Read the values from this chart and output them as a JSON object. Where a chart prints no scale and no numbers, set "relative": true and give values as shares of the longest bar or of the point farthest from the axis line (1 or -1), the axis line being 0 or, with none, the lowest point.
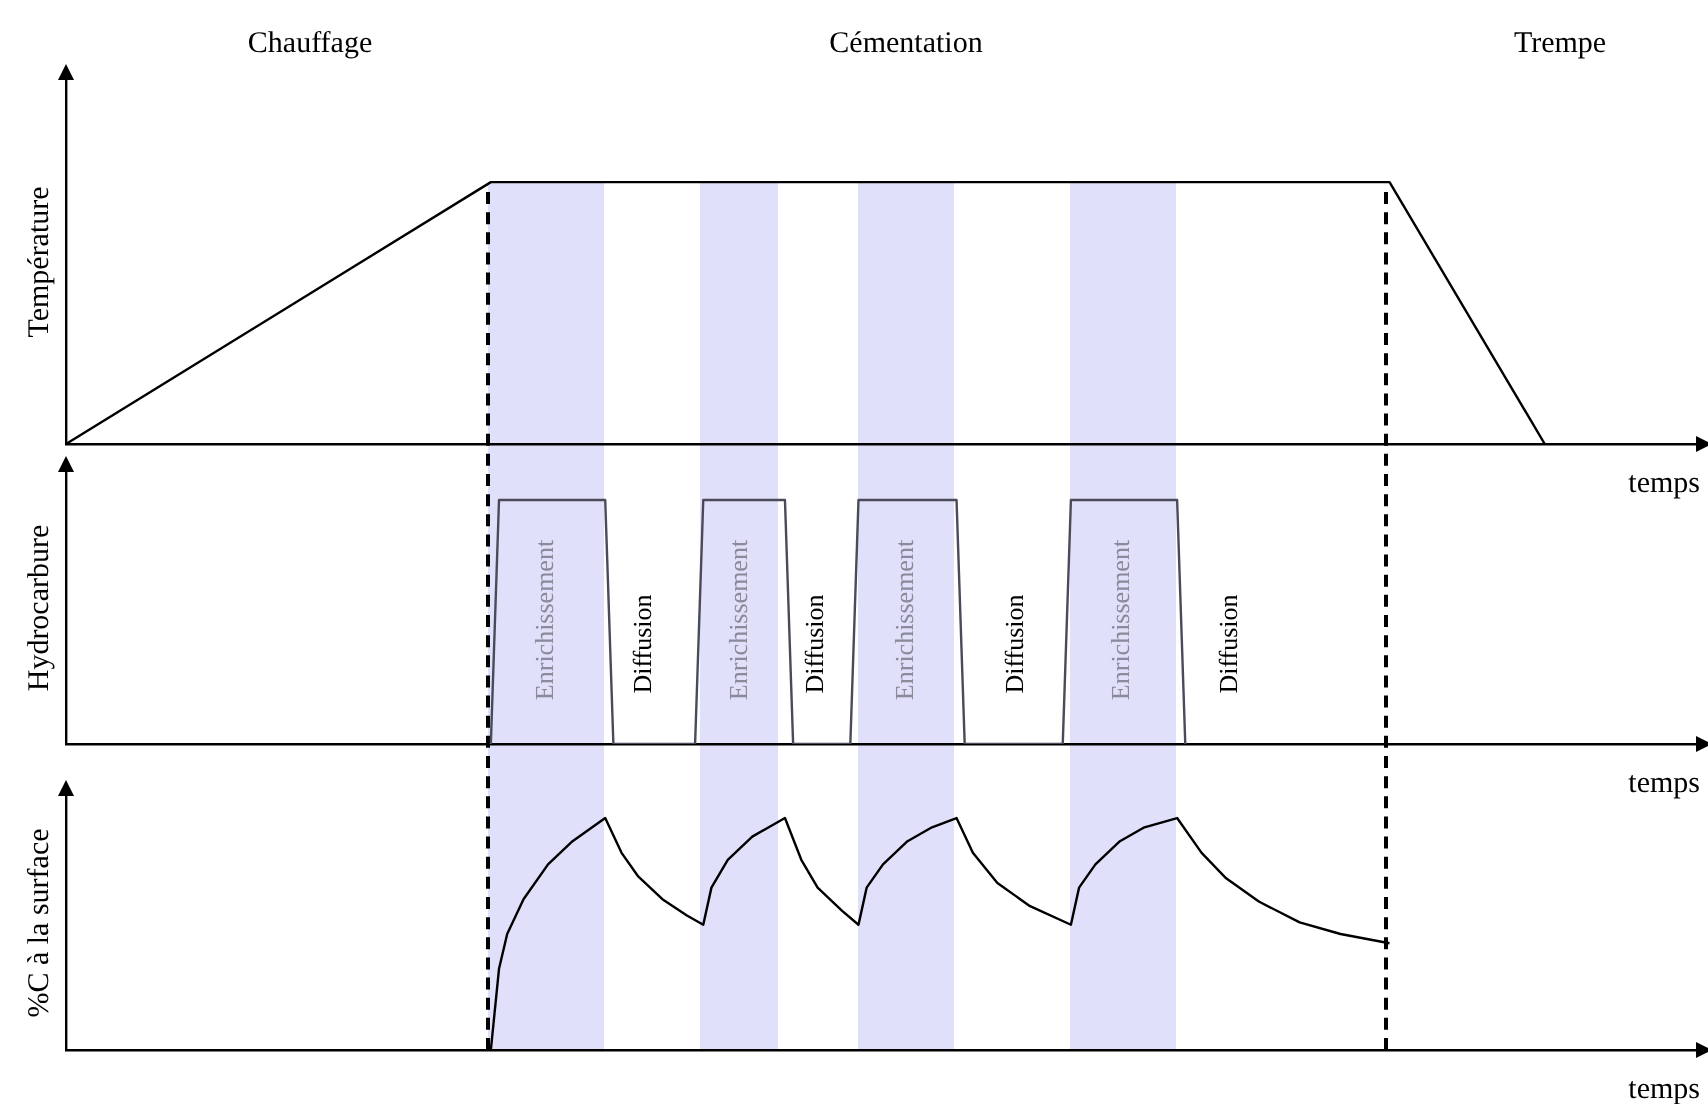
{
  "chart_data": [
    {
      "type": "line",
      "ylabel": "Température",
      "xlabel": "temps",
      "relative": true,
      "legend": false,
      "marker": "none",
      "color": "#000000",
      "categories": [
        null,
        null,
        null,
        null,
        null,
        null,
        null,
        null,
        null,
        null,
        null,
        null,
        null,
        null,
        null,
        null,
        null,
        null,
        null,
        null,
        null,
        null,
        null,
        null,
        null,
        null,
        null,
        null,
        null,
        null,
        null,
        null,
        null,
        null,
        null,
        null,
        null,
        null,
        null,
        null,
        null,
        null,
        null,
        null,
        null,
        null,
        null,
        null,
        null,
        null,
        null,
        null,
        null,
        null,
        null,
        null,
        null,
        null,
        null,
        null,
        null,
        null,
        null,
        null,
        null,
        null,
        null,
        null,
        null,
        null,
        null,
        null,
        null,
        null,
        null,
        null,
        null,
        null,
        null,
        null,
        null,
        null,
        null,
        null,
        null,
        null,
        null,
        null,
        null,
        null,
        null,
        null,
        null,
        null,
        null,
        null,
        null,
        null,
        null,
        null,
        null,
        null,
        null,
        null,
        null,
        null,
        null,
        null,
        null,
        null,
        null,
        null,
        null,
        null,
        null,
        null,
        null,
        null,
        null,
        null,
        null,
        null,
        null,
        null,
        null,
        null,
        null,
        null,
        null,
        null,
        null,
        null,
        null,
        null,
        null,
        null,
        null,
        null,
        null,
        null,
        null,
        null,
        null,
        null,
        null,
        null,
        null,
        null,
        null,
        null,
        null,
        null,
        null,
        null,
        null,
        null,
        null,
        null,
        null,
        null,
        null,
        null,
        null,
        null,
        null,
        null,
        null,
        null,
        null,
        null,
        null,
        null,
        null,
        null,
        null,
        null,
        null,
        null,
        null,
        null,
        null,
        null,
        null,
        null,
        null,
        null,
        null,
        null,
        null,
        null,
        null,
        null,
        null,
        null,
        null,
        null,
        null,
        null,
        null,
        null,
        null
      ],
      "values": [
        0,
        null,
        null,
        null,
        null,
        null,
        null,
        null,
        null,
        null,
        null,
        null,
        null,
        null,
        null,
        null,
        null,
        null,
        null,
        null,
        null,
        null,
        null,
        null,
        null,
        null,
        null,
        null,
        null,
        null,
        null,
        null,
        null,
        null,
        null,
        null,
        null,
        null,
        null,
        null,
        null,
        null,
        null,
        null,
        null,
        null,
        null,
        null,
        null,
        null,
        null,
        null,
        1,
        null,
        null,
        null,
        null,
        null,
        null,
        null,
        null,
        null,
        null,
        null,
        null,
        null,
        null,
        null,
        null,
        null,
        null,
        null,
        null,
        null,
        null,
        null,
        null,
        null,
        null,
        null,
        null,
        null,
        null,
        null,
        null,
        null,
        null,
        null,
        null,
        null,
        null,
        null,
        null,
        null,
        null,
        null,
        null,
        null,
        null,
        null,
        null,
        null,
        null,
        null,
        null,
        null,
        null,
        null,
        null,
        null,
        null,
        null,
        null,
        null,
        null,
        null,
        null,
        null,
        null,
        null,
        null,
        null,
        null,
        null,
        null,
        null,
        null,
        null,
        null,
        null,
        null,
        null,
        null,
        null,
        null,
        null,
        null,
        null,
        null,
        null,
        null,
        null,
        null,
        null,
        null,
        null,
        null,
        null,
        null,
        null,
        null,
        null,
        null,
        null,
        null,
        null,
        null,
        null,
        null,
        null,
        null,
        null,
        1,
        null,
        null,
        null,
        null,
        null,
        null,
        null,
        null,
        null,
        null,
        null,
        null,
        null,
        null,
        null,
        null,
        null,
        null,
        0,
        null,
        null,
        null,
        null,
        null,
        null,
        null,
        null,
        null,
        null,
        null,
        null,
        null,
        null,
        null,
        null,
        null,
        null,
        null
      ],
      "annotations": [
        "Chauffage",
        "Cémentation",
        "Trempe"
      ]
    },
    {
      "type": "line",
      "ylabel": "Hydrocarbure",
      "xlabel": "temps",
      "relative": true,
      "legend": false,
      "marker": "none",
      "color": "#4a4a5a",
      "categories": [
        null,
        null,
        null,
        null,
        null,
        null,
        null,
        null,
        null,
        null,
        null,
        null,
        null,
        null,
        null,
        null,
        null,
        null,
        null,
        null,
        null,
        null,
        null,
        null,
        null,
        null,
        null,
        null,
        null,
        null,
        null,
        null,
        null,
        null,
        null,
        null,
        null,
        null,
        null,
        null,
        null,
        null,
        null,
        null,
        null,
        null,
        null,
        null,
        null,
        null,
        null,
        null,
        null,
        null,
        null,
        null,
        null,
        null,
        null,
        null,
        null,
        null,
        null,
        null,
        null,
        null,
        null,
        null,
        null,
        null,
        null,
        null,
        null,
        null,
        null,
        null,
        null,
        null,
        null,
        null,
        null,
        null,
        null,
        null,
        null,
        null,
        null,
        null,
        null,
        null,
        null,
        null,
        null,
        null,
        null,
        null,
        null,
        null,
        null,
        null,
        null,
        null,
        null,
        null,
        null,
        null,
        null,
        null,
        null,
        null,
        null,
        null,
        null,
        null,
        null,
        null,
        null,
        null,
        null,
        null,
        null,
        null,
        null,
        null,
        null,
        null,
        null,
        null,
        null,
        null,
        null,
        null,
        null,
        null,
        null,
        null,
        null,
        null,
        null,
        null,
        null,
        null,
        null,
        null,
        null,
        null,
        null,
        null,
        null,
        null,
        null,
        null,
        null,
        null,
        null,
        null,
        null,
        null,
        null,
        null,
        null,
        null,
        null,
        null,
        null,
        null,
        null,
        null,
        null,
        null,
        null,
        null,
        null,
        null,
        null,
        null,
        null,
        null,
        null,
        null,
        null,
        null,
        null,
        null,
        null,
        null,
        null,
        null,
        null,
        null,
        null,
        null,
        null,
        null,
        null,
        null,
        null,
        null,
        null,
        null,
        null
      ],
      "values": [
        null,
        null,
        null,
        null,
        null,
        null,
        null,
        null,
        null,
        null,
        null,
        null,
        null,
        null,
        null,
        null,
        null,
        null,
        null,
        null,
        null,
        null,
        null,
        null,
        null,
        null,
        null,
        null,
        null,
        null,
        null,
        null,
        null,
        null,
        null,
        null,
        null,
        null,
        null,
        null,
        null,
        null,
        null,
        null,
        null,
        null,
        null,
        null,
        null,
        null,
        null,
        null,
        0,
        1,
        null,
        null,
        null,
        null,
        null,
        null,
        null,
        null,
        null,
        null,
        null,
        null,
        1,
        0,
        null,
        null,
        null,
        null,
        null,
        null,
        null,
        null,
        null,
        0,
        1,
        null,
        null,
        null,
        null,
        null,
        null,
        null,
        null,
        null,
        1,
        0,
        null,
        null,
        null,
        null,
        null,
        null,
        0,
        1,
        null,
        null,
        null,
        null,
        null,
        null,
        null,
        null,
        null,
        null,
        null,
        1,
        0,
        null,
        null,
        null,
        null,
        null,
        null,
        null,
        null,
        null,
        null,
        null,
        0,
        1,
        null,
        null,
        null,
        null,
        null,
        null,
        null,
        null,
        null,
        null,
        null,
        null,
        1,
        0,
        null,
        null,
        null,
        null,
        null,
        null,
        null,
        null,
        null,
        null,
        null,
        null,
        null,
        null,
        null,
        null,
        null,
        null,
        null,
        null,
        null,
        null,
        null,
        null,
        null,
        null,
        null,
        null,
        null,
        null,
        null,
        null,
        null,
        null,
        null,
        null,
        null,
        null,
        null,
        null,
        null,
        null,
        null,
        null,
        null,
        null,
        null,
        null,
        null,
        null,
        null,
        null,
        null,
        null,
        null,
        null,
        null,
        null,
        null,
        null,
        null,
        null,
        null
      ],
      "annotations": [
        "Enrichissement",
        "Diffusion",
        "Enrichissement",
        "Diffusion",
        "Enrichissement",
        "Diffusion",
        "Enrichissement",
        "Diffusion"
      ]
    },
    {
      "type": "line",
      "ylabel": "%C à la surface",
      "xlabel": "temps",
      "relative": true,
      "legend": false,
      "marker": "none",
      "color": "#000000",
      "categories": [
        null,
        null,
        null,
        null,
        null,
        null,
        null,
        null,
        null,
        null,
        null,
        null,
        null,
        null,
        null,
        null,
        null,
        null,
        null,
        null,
        null,
        null,
        null,
        null,
        null,
        null,
        null,
        null,
        null,
        null,
        null,
        null,
        null,
        null,
        null,
        null,
        null,
        null,
        null,
        null,
        null,
        null,
        null,
        null,
        null,
        null,
        null,
        null,
        null,
        null,
        null,
        null,
        null,
        null,
        null,
        null,
        null,
        null,
        null,
        null,
        null,
        null,
        null,
        null,
        null,
        null,
        null,
        null,
        null,
        null,
        null,
        null,
        null,
        null,
        null,
        null,
        null,
        null,
        null,
        null,
        null,
        null,
        null,
        null,
        null,
        null,
        null,
        null,
        null,
        null,
        null,
        null,
        null,
        null,
        null,
        null,
        null,
        null,
        null,
        null,
        null,
        null,
        null,
        null,
        null,
        null,
        null,
        null,
        null,
        null,
        null,
        null,
        null,
        null,
        null,
        null,
        null,
        null,
        null,
        null,
        null,
        null,
        null,
        null,
        null,
        null,
        null,
        null,
        null,
        null,
        null,
        null,
        null,
        null,
        null,
        null,
        null,
        null,
        null,
        null,
        null,
        null,
        null,
        null,
        null,
        null,
        null,
        null,
        null,
        null,
        null,
        null,
        null,
        null,
        null,
        null,
        null,
        null,
        null,
        null,
        null,
        null,
        null,
        null,
        null,
        null,
        null,
        null,
        null,
        null,
        null,
        null,
        null,
        null,
        null,
        null,
        null,
        null,
        null,
        null,
        null,
        null,
        null,
        null,
        null,
        null,
        null,
        null,
        null,
        null,
        null,
        null,
        null,
        null,
        null,
        null,
        null,
        null,
        null,
        null,
        null
      ],
      "values": [
        null,
        null,
        null,
        null,
        null,
        null,
        null,
        null,
        null,
        null,
        null,
        null,
        null,
        null,
        null,
        null,
        null,
        null,
        null,
        null,
        null,
        null,
        null,
        null,
        null,
        null,
        null,
        null,
        null,
        null,
        null,
        null,
        null,
        null,
        null,
        null,
        null,
        null,
        null,
        null,
        null,
        null,
        null,
        null,
        null,
        null,
        null,
        null,
        null,
        null,
        null,
        null,
        0,
        0.35,
        0.5,
        null,
        0.65,
        null,
        null,
        0.8,
        null,
        null,
        0.9,
        null,
        null,
        null,
        1,
        null,
        0.85,
        null,
        0.75,
        null,
        null,
        0.65,
        null,
        null,
        0.58,
        null,
        0.54,
        0.7,
        null,
        0.82,
        null,
        null,
        0.92,
        null,
        null,
        null,
        1,
        null,
        0.82,
        null,
        0.7,
        null,
        null,
        0.6,
        null,
        0.54,
        0.7,
        null,
        0.8,
        null,
        null,
        0.9,
        null,
        null,
        0.96,
        null,
        null,
        1,
        null,
        0.85,
        null,
        null,
        0.72,
        null,
        null,
        null,
        0.62,
        null,
        null,
        null,
        null,
        0.54,
        0.7,
        null,
        0.8,
        null,
        null,
        0.9,
        null,
        null,
        0.96,
        null,
        null,
        null,
        1,
        null,
        null,
        0.85,
        null,
        null,
        0.74,
        null,
        null,
        null,
        0.64,
        null,
        null,
        null,
        null,
        0.55,
        null,
        null,
        null,
        null,
        0.5,
        null,
        null,
        null,
        null,
        null,
        0.46,
        null,
        null,
        null,
        null,
        null,
        null,
        null,
        null,
        null,
        null,
        null,
        null,
        null,
        null,
        null,
        null,
        null,
        null,
        null,
        null,
        null,
        null,
        null,
        null,
        null,
        null,
        null,
        null,
        null,
        null,
        null,
        null,
        null,
        null,
        null,
        null,
        null,
        null
      ]
    }
  ]
}
